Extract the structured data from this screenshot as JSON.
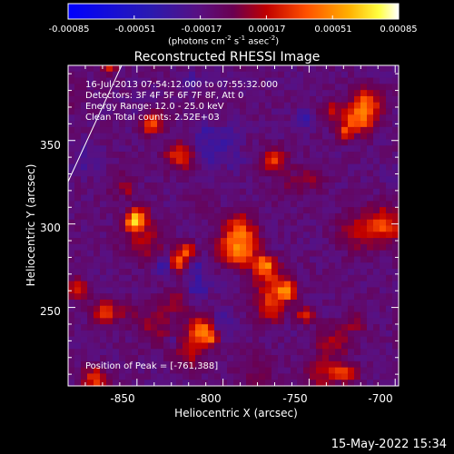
{
  "chart_data": {
    "type": "heatmap",
    "title": "Reconstructed RHESSI Image",
    "xlabel": "Heliocentric X (arcsec)",
    "ylabel": "Heliocentric Y (arcsec)",
    "xlim": [
      -890,
      -698
    ],
    "ylim": [
      203,
      395
    ],
    "x_ticks": [
      "-850",
      "-800",
      "-750",
      "-700"
    ],
    "x_tick_values": [
      -850,
      -800,
      -750,
      -700
    ],
    "y_ticks": [
      "250",
      "300",
      "350"
    ],
    "y_tick_values": [
      250,
      300,
      350
    ],
    "colorbar": {
      "range": [
        -0.00085,
        0.00085
      ],
      "ticks": [
        "-0.00085",
        "-0.00051",
        "-0.00017",
        "0.00017",
        "0.00051",
        "0.00085"
      ],
      "tick_values": [
        -0.00085,
        -0.00051,
        -0.00017,
        0.00017,
        0.00051,
        0.00085
      ],
      "unit_main": "(photons cm",
      "unit_exp1": "-2",
      "unit_mid1": " s",
      "unit_exp2": "-1",
      "unit_mid2": " asec",
      "unit_exp3": "-2",
      "unit_end": ")"
    },
    "annotations": [
      "16-Jul-2013 07:54:12.000 to 07:55:32.000",
      "Detectors: 3F 4F 5F 6F 7F 8F, Att 0",
      "Energy Range: 12.0 - 25.0 keV",
      "Clean    Total counts: 2.52E+03"
    ],
    "peak_label": "Position of Peak = [-761,388]",
    "peak": [
      -761,
      388
    ],
    "grid": false,
    "colormap": "blue-purple-red-yellow-white"
  },
  "footer": {
    "date": "15-May-2022 15:34"
  }
}
